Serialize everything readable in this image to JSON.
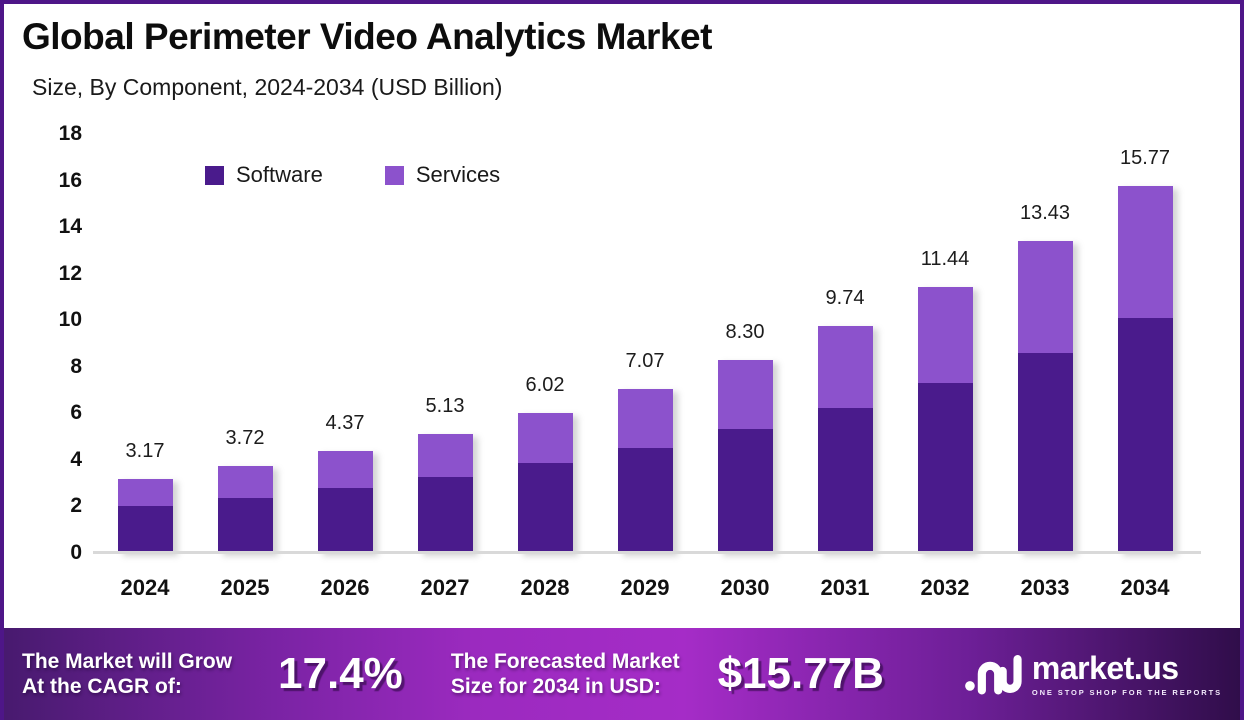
{
  "header": {
    "title": "Global Perimeter Video Analytics Market",
    "subtitle": "Size, By Component, 2024-2034 (USD Billion)"
  },
  "chart_data": {
    "type": "bar",
    "stacked": true,
    "title": "Global Perimeter Video Analytics Market Size, By Component, 2024-2034 (USD Billion)",
    "categories": [
      "2024",
      "2025",
      "2026",
      "2027",
      "2028",
      "2029",
      "2030",
      "2031",
      "2032",
      "2033",
      "2034"
    ],
    "series": [
      {
        "name": "Software",
        "color": "#4a1b8c",
        "values": [
          2.03,
          2.38,
          2.8,
          3.28,
          3.85,
          4.52,
          5.31,
          6.23,
          7.32,
          8.6,
          10.09
        ]
      },
      {
        "name": "Services",
        "color": "#8c52cc",
        "values": [
          1.14,
          1.34,
          1.57,
          1.85,
          2.17,
          2.55,
          2.99,
          3.51,
          4.12,
          4.83,
          5.68
        ]
      }
    ],
    "totals": [
      3.17,
      3.72,
      4.37,
      5.13,
      6.02,
      7.07,
      8.3,
      9.74,
      11.44,
      13.43,
      15.77
    ],
    "total_labels": [
      "3.17",
      "3.72",
      "4.37",
      "5.13",
      "6.02",
      "7.07",
      "8.30",
      "9.74",
      "11.44",
      "13.43",
      "15.77"
    ],
    "xlabel": "",
    "ylabel": "",
    "ylim": [
      0,
      18
    ],
    "yticks": [
      0,
      2,
      4,
      6,
      8,
      10,
      12,
      14,
      16,
      18
    ],
    "grid": false,
    "legend_position": "top-left"
  },
  "banner": {
    "cagr_label_line1": "The Market will Grow",
    "cagr_label_line2": "At the CAGR of:",
    "cagr_value": "17.4%",
    "forecast_label_line1": "The Forecasted Market",
    "forecast_label_line2": "Size for 2034 in USD:",
    "forecast_value": "$15.77B",
    "logo_text": "market.us",
    "logo_tagline": "ONE STOP SHOP FOR THE REPORTS"
  },
  "colors": {
    "software": "#4a1b8c",
    "services": "#8c52cc",
    "frame_border": "#4e1688",
    "axis_line": "#d9d9d9",
    "banner_gradient_left": "#471a6e",
    "banner_gradient_mid": "#a52cc7",
    "banner_gradient_right": "#2f0d49"
  }
}
